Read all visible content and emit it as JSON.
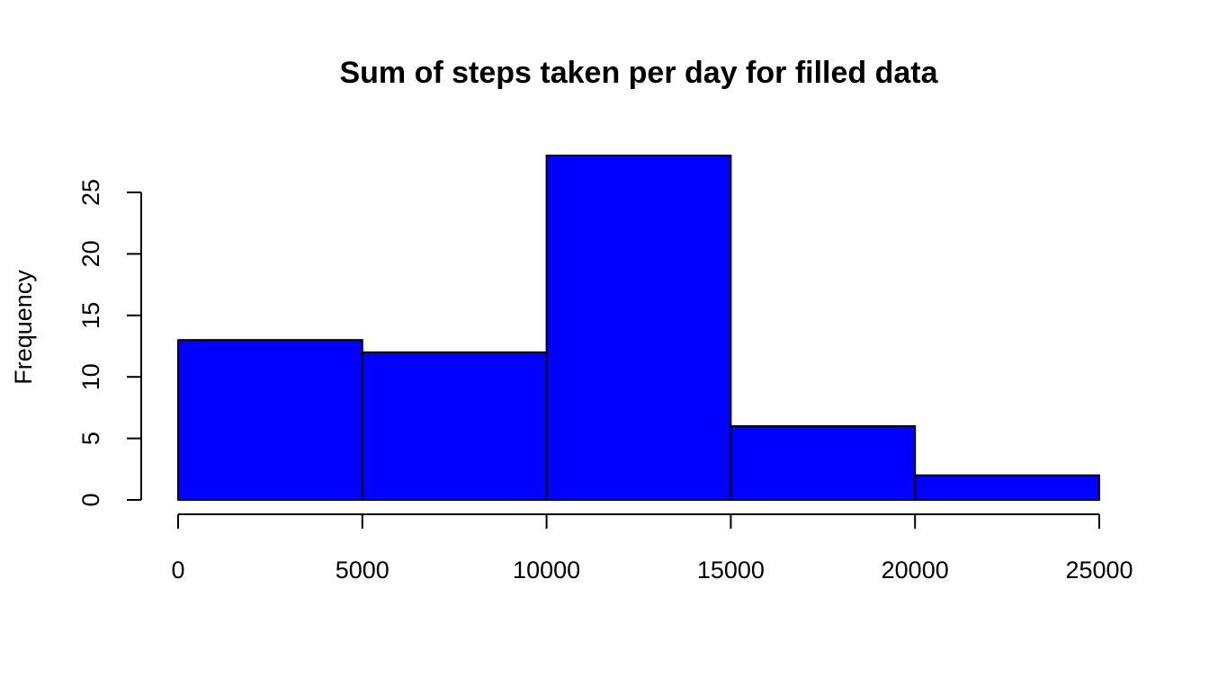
{
  "chart_data": {
    "type": "bar",
    "title": "Sum of steps taken per day for filled data",
    "xlabel": "",
    "ylabel": "Frequency",
    "bins": [
      {
        "from": 0,
        "to": 5000,
        "value": 13
      },
      {
        "from": 5000,
        "to": 10000,
        "value": 12
      },
      {
        "from": 10000,
        "to": 15000,
        "value": 28
      },
      {
        "from": 15000,
        "to": 20000,
        "value": 6
      },
      {
        "from": 20000,
        "to": 25000,
        "value": 2
      }
    ],
    "xlim": [
      0,
      25000
    ],
    "ylim": [
      0,
      28
    ],
    "x_ticks": [
      0,
      5000,
      10000,
      15000,
      20000,
      25000
    ],
    "y_ticks": [
      0,
      5,
      10,
      15,
      20,
      25
    ],
    "x_tick_labels": [
      "0",
      "5000",
      "10000",
      "15000",
      "20000",
      "25000"
    ],
    "y_tick_labels": [
      "0",
      "5",
      "10",
      "15",
      "20",
      "25"
    ],
    "bar_color": "#0000ff",
    "border_color": "#000000",
    "grid": false,
    "legend": "none"
  }
}
